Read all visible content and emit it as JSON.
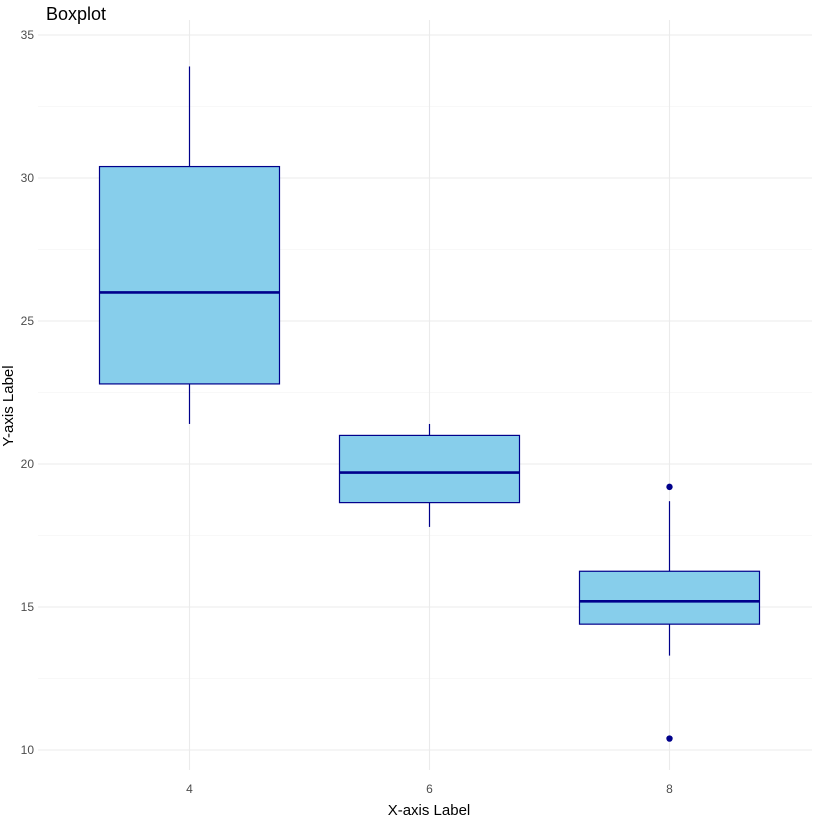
{
  "chart_data": {
    "type": "boxplot",
    "title": "Boxplot",
    "xlabel": "X-axis Label",
    "ylabel": "Y-axis Label",
    "categories": [
      "4",
      "6",
      "8"
    ],
    "ylim": [
      9.6,
      35.1
    ],
    "yticks": [
      10,
      15,
      20,
      25,
      30,
      35
    ],
    "grid": true,
    "box_fill": "#87ceeb",
    "box_stroke": "#00008b",
    "boxes": [
      {
        "category": "4",
        "whisker_low": 21.4,
        "q1": 22.8,
        "median": 26.0,
        "q3": 30.4,
        "whisker_high": 33.9,
        "outliers": []
      },
      {
        "category": "6",
        "whisker_low": 17.8,
        "q1": 18.65,
        "median": 19.7,
        "q3": 21.0,
        "whisker_high": 21.4,
        "outliers": []
      },
      {
        "category": "8",
        "whisker_low": 13.3,
        "q1": 14.4,
        "median": 15.2,
        "q3": 16.25,
        "whisker_high": 18.7,
        "outliers": [
          19.2,
          10.4
        ]
      }
    ]
  }
}
